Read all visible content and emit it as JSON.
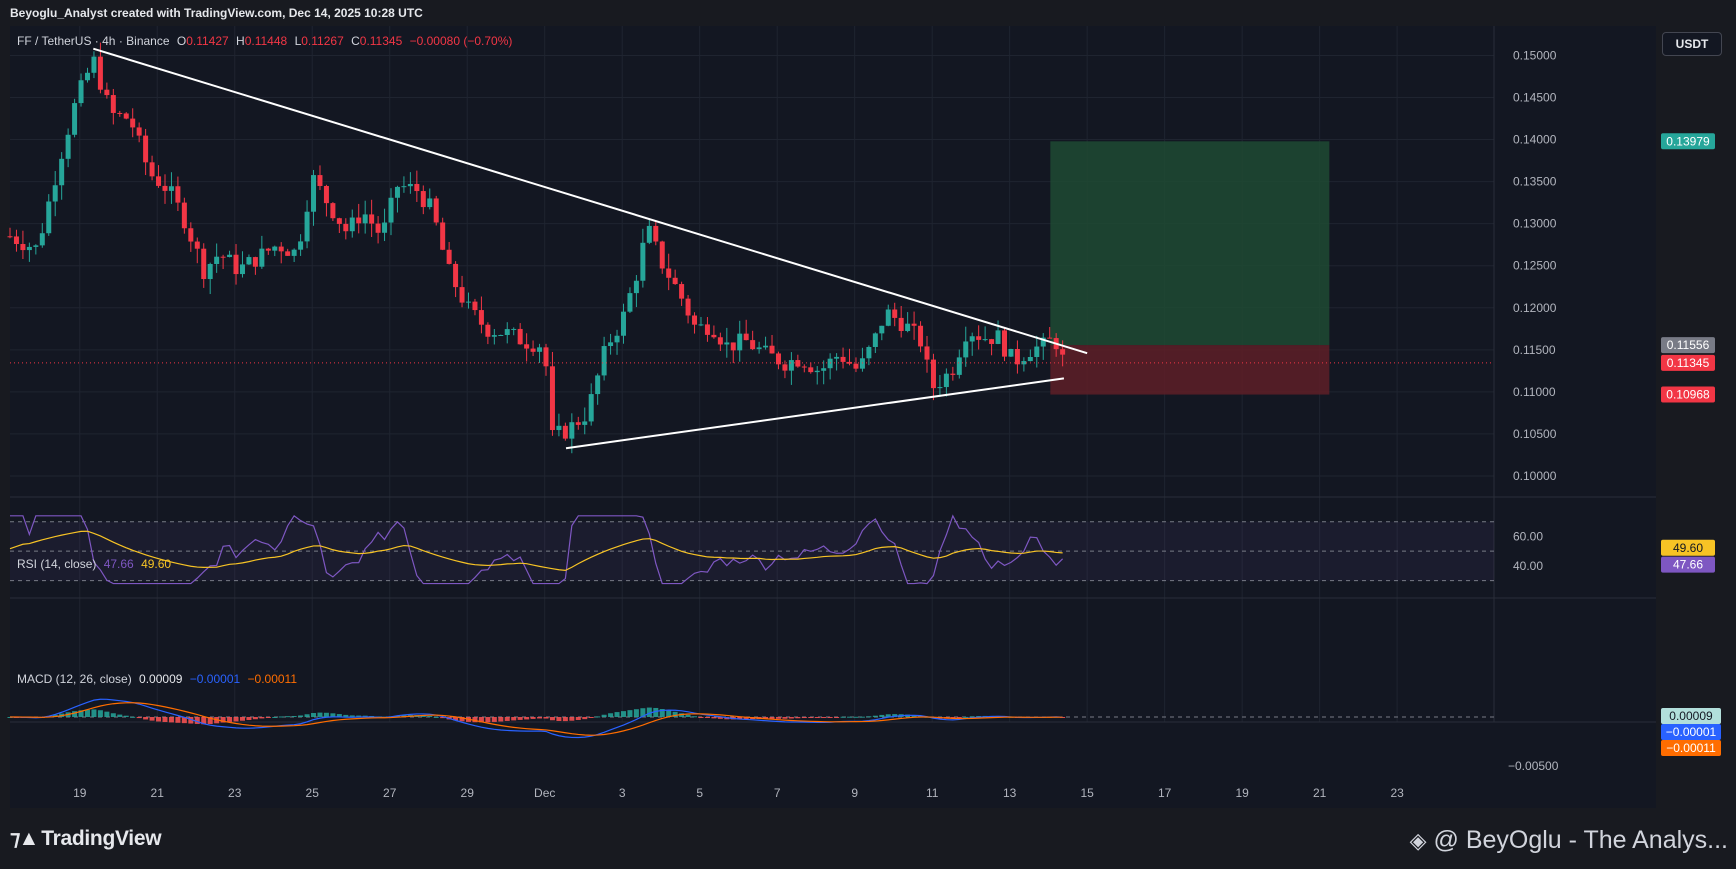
{
  "header": {
    "publish_line": "Beyoglu_Analyst created with TradingView.com, Dec 14, 2025 10:28 UTC"
  },
  "legend": {
    "symbol": "FF / TetherUS · 4h · Binance",
    "o_label": "O",
    "o_value": "0.11427",
    "h_label": "H",
    "h_value": "0.11448",
    "l_label": "L",
    "l_value": "0.11267",
    "c_label": "C",
    "c_value": "0.11345",
    "change": "−0.00080 (−0.70%)",
    "rsi_label": "RSI (14, close)",
    "rsi_value": "47.66",
    "rsi_ma_value": "49.60",
    "macd_label": "MACD (12, 26, close)",
    "macd_hist": "0.00009",
    "macd_line": "−0.00001",
    "macd_signal": "−0.00011"
  },
  "currency_button": "USDT",
  "footer": {
    "brand": "TradingView",
    "credit": "@ BeyOglu - The Analys..."
  },
  "colors": {
    "up": "#26a69a",
    "down": "#f23645",
    "background": "#131722",
    "grid": "#1f2430",
    "rsi_line": "#7e57c2",
    "rsi_ma": "#f7c325",
    "macd_line": "#2962ff",
    "signal_line": "#ff6d00",
    "profit_zone": "#1f4a33",
    "loss_zone": "#5e1f27"
  },
  "chart_data": {
    "type": "candlestick",
    "price_axis": {
      "ticks": [
        "0.15000",
        "0.14500",
        "0.14000",
        "0.13500",
        "0.13000",
        "0.12500",
        "0.12000",
        "0.11500",
        "0.11000",
        "0.10500",
        "0.10000"
      ],
      "ylim": [
        0.0975,
        0.1535
      ],
      "labels": [
        {
          "text": "0.13979",
          "value": 0.13979,
          "color": "#26a69a"
        },
        {
          "text": "0.11556",
          "value": 0.11556,
          "color": "#787b86"
        },
        {
          "text": "0.11345",
          "value": 0.11345,
          "color": "#f23645"
        },
        {
          "text": "0.10968",
          "value": 0.10968,
          "color": "#f23645"
        }
      ]
    },
    "time_axis": {
      "labels": [
        "19",
        "21",
        "23",
        "25",
        "27",
        "29",
        "Dec",
        "3",
        "5",
        "7",
        "9",
        "11",
        "13",
        "15",
        "17",
        "19",
        "21",
        "23"
      ],
      "xlim": [
        17.2,
        55.5
      ],
      "tick_days": [
        19,
        21,
        23,
        25,
        27,
        29,
        31,
        33,
        35,
        37,
        39,
        41,
        43,
        45,
        47,
        49,
        51,
        53
      ]
    },
    "last_price": 0.11345,
    "position": {
      "entry": 0.11556,
      "target": 0.13979,
      "stop": 0.10968,
      "start_day": 44.05,
      "end_day": 51.25
    },
    "trendlines": [
      {
        "name": "descending resistance",
        "from": [
          19.35,
          0.1508
        ],
        "to": [
          45.0,
          0.1146
        ]
      },
      {
        "name": "ascending support",
        "from": [
          31.55,
          0.1033
        ],
        "to": [
          44.4,
          0.1116
        ]
      }
    ],
    "price_path": [
      [
        17.2,
        0.1285
      ],
      [
        17.9,
        0.127
      ],
      [
        18.5,
        0.138
      ],
      [
        18.9,
        0.1445
      ],
      [
        19.35,
        0.1495
      ],
      [
        19.8,
        0.143
      ],
      [
        20.3,
        0.1425
      ],
      [
        20.8,
        0.136
      ],
      [
        21.3,
        0.134
      ],
      [
        21.7,
        0.1305
      ],
      [
        22.2,
        0.1245
      ],
      [
        22.6,
        0.1265
      ],
      [
        23.1,
        0.1245
      ],
      [
        23.6,
        0.126
      ],
      [
        24.1,
        0.1275
      ],
      [
        24.6,
        0.1265
      ],
      [
        25.0,
        0.1355
      ],
      [
        25.4,
        0.1325
      ],
      [
        25.9,
        0.129
      ],
      [
        26.3,
        0.1315
      ],
      [
        26.8,
        0.1285
      ],
      [
        27.2,
        0.1345
      ],
      [
        27.7,
        0.134
      ],
      [
        28.1,
        0.1315
      ],
      [
        28.5,
        0.1245
      ],
      [
        29.0,
        0.12
      ],
      [
        29.5,
        0.1175
      ],
      [
        30.0,
        0.117
      ],
      [
        30.5,
        0.116
      ],
      [
        31.0,
        0.1155
      ],
      [
        31.15,
        0.1045
      ],
      [
        31.6,
        0.1055
      ],
      [
        32.1,
        0.1075
      ],
      [
        32.6,
        0.1155
      ],
      [
        33.0,
        0.1185
      ],
      [
        33.4,
        0.1245
      ],
      [
        33.65,
        0.1295
      ],
      [
        34.0,
        0.1255
      ],
      [
        34.5,
        0.1215
      ],
      [
        34.9,
        0.1175
      ],
      [
        35.3,
        0.118
      ],
      [
        35.7,
        0.1155
      ],
      [
        36.2,
        0.116
      ],
      [
        36.7,
        0.1145
      ],
      [
        37.2,
        0.1135
      ],
      [
        37.6,
        0.114
      ],
      [
        38.1,
        0.1125
      ],
      [
        38.6,
        0.1145
      ],
      [
        39.1,
        0.1125
      ],
      [
        39.5,
        0.116
      ],
      [
        39.8,
        0.1195
      ],
      [
        40.3,
        0.118
      ],
      [
        40.7,
        0.116
      ],
      [
        41.0,
        0.1105
      ],
      [
        41.5,
        0.1125
      ],
      [
        41.9,
        0.1175
      ],
      [
        42.3,
        0.1165
      ],
      [
        42.7,
        0.1165
      ],
      [
        43.1,
        0.1135
      ],
      [
        43.5,
        0.115
      ],
      [
        43.9,
        0.1155
      ],
      [
        44.15,
        0.1165
      ],
      [
        44.4,
        0.11345
      ]
    ],
    "rsi": {
      "levels": [
        70,
        50,
        30
      ],
      "tick_labels": [
        "60.00",
        "40.00"
      ],
      "value": 47.66,
      "ma_value": 49.6,
      "labels": [
        {
          "text": "49.60",
          "color": "#f7c325"
        },
        {
          "text": "47.66",
          "color": "#7e57c2"
        }
      ]
    },
    "macd": {
      "tick_labels": [
        "−0.00500"
      ],
      "hist": 9e-05,
      "macd": -1e-05,
      "signal": -0.00011,
      "labels": [
        {
          "text": "0.00009",
          "color": "#b2dfdb"
        },
        {
          "text": "−0.00001",
          "color": "#2962ff"
        },
        {
          "text": "−0.00011",
          "color": "#ff6d00"
        }
      ]
    }
  }
}
